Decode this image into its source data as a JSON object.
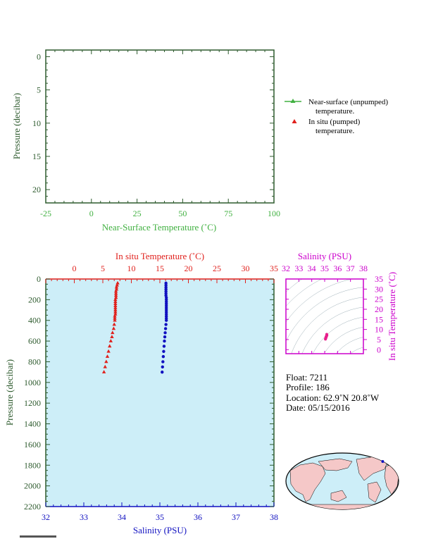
{
  "colors": {
    "axis_dark": "#2d5a2d",
    "green": "#40b040",
    "red": "#e0201c",
    "blue": "#1010c0",
    "magenta": "#cc00cc",
    "plot_bg": "#cdeef8",
    "land": "#f5c8c8",
    "ocean": "#cdeef8"
  },
  "chart_data": [
    {
      "id": "near-surface",
      "type": "scatter",
      "xlabel": "Near-Surface Temperature (˚C)",
      "ylabel": "Pressure (decibar)",
      "xlim": [
        -25,
        100
      ],
      "ylim": [
        22,
        -1
      ],
      "x_ticks": [
        "-25",
        "0",
        "25",
        "50",
        "75",
        "100"
      ],
      "y_ticks": [
        "0",
        "5",
        "10",
        "15",
        "20"
      ],
      "legend": [
        {
          "line1": "Near-surface (unpumped)",
          "line2": "temperature."
        },
        {
          "line1": "In situ (pumped)",
          "line2": "temperature."
        }
      ],
      "series": []
    },
    {
      "id": "profile",
      "type": "scatter",
      "ylabel": "Pressure (decibar)",
      "ylim": [
        2200,
        0
      ],
      "y_ticks": [
        "0",
        "200",
        "400",
        "600",
        "800",
        "1000",
        "1200",
        "1400",
        "1600",
        "1800",
        "2000",
        "2200"
      ],
      "temperature_axis": {
        "label": "In situ Temperature (˚C)",
        "range": [
          -5,
          35
        ],
        "ticks": [
          "0",
          "5",
          "10",
          "15",
          "20",
          "25",
          "30",
          "35"
        ]
      },
      "salinity_axis": {
        "label": "Salinity (PSU)",
        "range": [
          32,
          38
        ],
        "ticks": [
          "32",
          "33",
          "34",
          "35",
          "36",
          "37",
          "38"
        ]
      },
      "series": [
        {
          "kind": "temperature",
          "points": [
            [
              7.6,
              40
            ],
            [
              7.5,
              60
            ],
            [
              7.4,
              80
            ],
            [
              7.4,
              100
            ],
            [
              7.3,
              120
            ],
            [
              7.3,
              140
            ],
            [
              7.3,
              160
            ],
            [
              7.3,
              180
            ],
            [
              7.2,
              200
            ],
            [
              7.2,
              220
            ],
            [
              7.2,
              240
            ],
            [
              7.2,
              260
            ],
            [
              7.2,
              280
            ],
            [
              7.2,
              300
            ],
            [
              7.2,
              320
            ],
            [
              7.2,
              340
            ],
            [
              7.1,
              360
            ],
            [
              7.1,
              380
            ],
            [
              7.1,
              400
            ],
            [
              7.0,
              440
            ],
            [
              6.9,
              480
            ],
            [
              6.7,
              520
            ],
            [
              6.6,
              560
            ],
            [
              6.4,
              600
            ],
            [
              6.2,
              650
            ],
            [
              6.0,
              700
            ],
            [
              5.8,
              750
            ],
            [
              5.6,
              800
            ],
            [
              5.4,
              850
            ],
            [
              5.2,
              900
            ]
          ]
        },
        {
          "kind": "salinity",
          "points": [
            [
              35.16,
              40
            ],
            [
              35.16,
              60
            ],
            [
              35.16,
              80
            ],
            [
              35.16,
              100
            ],
            [
              35.16,
              120
            ],
            [
              35.16,
              140
            ],
            [
              35.16,
              160
            ],
            [
              35.17,
              180
            ],
            [
              35.17,
              200
            ],
            [
              35.17,
              220
            ],
            [
              35.17,
              240
            ],
            [
              35.17,
              260
            ],
            [
              35.17,
              280
            ],
            [
              35.17,
              300
            ],
            [
              35.17,
              320
            ],
            [
              35.17,
              340
            ],
            [
              35.17,
              360
            ],
            [
              35.17,
              380
            ],
            [
              35.17,
              400
            ],
            [
              35.16,
              440
            ],
            [
              35.15,
              480
            ],
            [
              35.14,
              520
            ],
            [
              35.13,
              560
            ],
            [
              35.12,
              600
            ],
            [
              35.11,
              650
            ],
            [
              35.1,
              700
            ],
            [
              35.09,
              750
            ],
            [
              35.08,
              800
            ],
            [
              35.07,
              850
            ],
            [
              35.06,
              900
            ]
          ]
        }
      ]
    },
    {
      "id": "ts-diagram",
      "type": "scatter",
      "xlabel": "Salinity (PSU)",
      "ylabel": "In situ Temperature (˚C)",
      "xlim": [
        32,
        38
      ],
      "ylim": [
        -2,
        35
      ],
      "x_ticks": [
        "32",
        "33",
        "34",
        "35",
        "36",
        "37",
        "38"
      ],
      "y_ticks": [
        "0",
        "5",
        "10",
        "15",
        "20",
        "25",
        "30",
        "35"
      ],
      "points": [
        [
          35.06,
          5.2
        ],
        [
          35.07,
          5.4
        ],
        [
          35.08,
          5.6
        ],
        [
          35.09,
          5.8
        ],
        [
          35.1,
          6.0
        ],
        [
          35.11,
          6.2
        ],
        [
          35.12,
          6.4
        ],
        [
          35.13,
          6.6
        ],
        [
          35.14,
          6.7
        ],
        [
          35.15,
          6.9
        ],
        [
          35.16,
          7.0
        ],
        [
          35.17,
          7.1
        ],
        [
          35.17,
          7.2
        ],
        [
          35.17,
          7.3
        ],
        [
          35.16,
          7.4
        ],
        [
          35.16,
          7.6
        ]
      ]
    }
  ],
  "info": {
    "float": "Float:  7211",
    "profile": "Profile:  186",
    "location": "Location:  62.9˚N  20.8˚W",
    "date": "Date:  05/15/2016"
  },
  "map": {
    "lat": 62.9,
    "lon": -20.8
  }
}
